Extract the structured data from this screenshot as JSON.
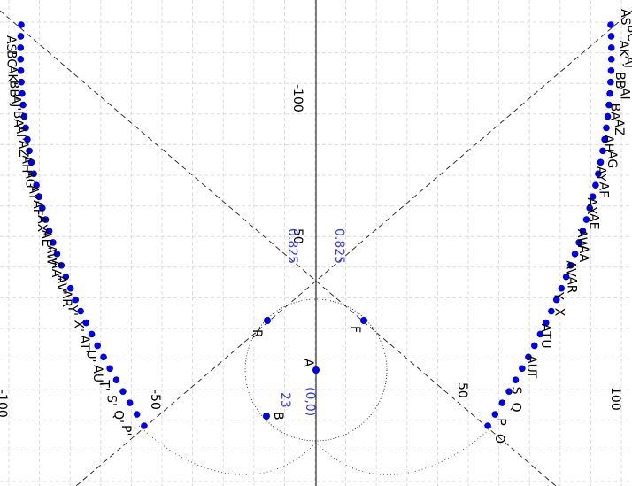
{
  "axes": {
    "x_ticks": [
      "-100",
      "-50",
      "50",
      "100"
    ],
    "y_ticks": [
      "-100",
      "50"
    ]
  },
  "annotations": [
    "0.825",
    "0.825",
    "(0,0)",
    "23"
  ],
  "points": [
    "R",
    "F",
    "A",
    "B"
  ],
  "right_labels": [
    "AS",
    "BC",
    "AK",
    "AJ",
    "BB",
    "AI",
    "BA",
    "AZ",
    "AH",
    "AG",
    "AY",
    "AF",
    "AX",
    "AE",
    "AW",
    "AA",
    "AV",
    "AR",
    "Y",
    "X",
    "AT",
    "U",
    "AU",
    "T",
    "S",
    "Q",
    "P",
    "O"
  ],
  "left_labels": [
    "AS'",
    "BC'",
    "AK'",
    "BB'",
    "AJ'",
    "BA'",
    "AI'",
    "AZ'",
    "AH'",
    "AG'",
    "AY'",
    "AF'",
    "AX'",
    "AE'",
    "AW'",
    "AA'",
    "AV'",
    "AR'",
    "Y'",
    "X'",
    "AT'",
    "U'",
    "AU'",
    "T'",
    "S'",
    "Q'",
    "P'"
  ]
}
